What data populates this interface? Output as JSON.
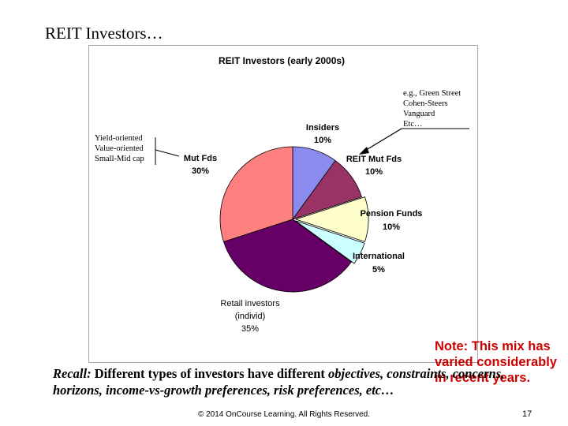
{
  "slide": {
    "title": "REIT Investors…",
    "recall_lead": "Recall:",
    "recall_text_1": " Different types of investors have different ",
    "recall_em_1": "objectives, constraints, concerns, horizons, income-vs-growth preferences, risk preferences, etc…",
    "footer": "© 2014 OnCourse Learning. All Rights Reserved.",
    "page_number": "17"
  },
  "colors": {
    "insiders": "#8b8bef",
    "reit_mut_fds": "#993366",
    "pension_funds": "#ffffcc",
    "international": "#ccffff",
    "retail": "#660066",
    "mut_fds": "#ff8080",
    "note": "#cc0000"
  },
  "chart_data": {
    "type": "pie",
    "title": "REIT Investors (early 2000s)",
    "slices": [
      {
        "key": "insiders",
        "label": "Insiders",
        "pct_label": "10%",
        "value": 10
      },
      {
        "key": "reit_mut_fds",
        "label": "REIT Mut Fds",
        "pct_label": "10%",
        "value": 10
      },
      {
        "key": "pension_funds",
        "label": "Pension Funds",
        "pct_label": "10%",
        "value": 10
      },
      {
        "key": "international",
        "label": "International",
        "pct_label": "5%",
        "value": 5
      },
      {
        "key": "retail",
        "label": "Retail investors",
        "label_2": "(individ)",
        "pct_label": "35%",
        "value": 35
      },
      {
        "key": "mut_fds",
        "label": "Mut Fds",
        "pct_label": "30%",
        "value": 30
      }
    ],
    "annotations": {
      "left_lines": [
        "Yield-oriented",
        "Value-oriented",
        "Small-Mid cap"
      ],
      "right_lines": [
        "e.g., Green Street",
        "Cohen-Steers",
        "Vanguard",
        "Etc…"
      ]
    },
    "note": "Note: This mix has varied considerably in recent years."
  }
}
